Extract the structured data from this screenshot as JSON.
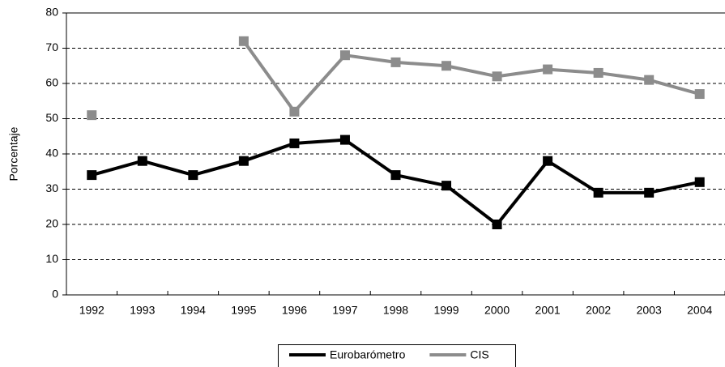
{
  "chart_data": {
    "type": "line",
    "y_label": "Porcentaje",
    "categories": [
      "1992",
      "1993",
      "1994",
      "1995",
      "1996",
      "1997",
      "1998",
      "1999",
      "2000",
      "2001",
      "2002",
      "2003",
      "2004"
    ],
    "series": [
      {
        "name": "Eurobarómetro",
        "color": "#000000",
        "values": [
          34,
          38,
          34,
          38,
          43,
          44,
          34,
          31,
          20,
          38,
          29,
          29,
          32
        ]
      },
      {
        "name": "CIS",
        "color": "#8c8c8c",
        "values": [
          51,
          null,
          null,
          72,
          52,
          68,
          66,
          65,
          62,
          64,
          63,
          61,
          57
        ]
      }
    ],
    "ylim": [
      0,
      80
    ],
    "yticks": [
      0,
      10,
      20,
      30,
      40,
      50,
      60,
      70,
      80
    ],
    "grid": true,
    "legend": "bottom"
  }
}
